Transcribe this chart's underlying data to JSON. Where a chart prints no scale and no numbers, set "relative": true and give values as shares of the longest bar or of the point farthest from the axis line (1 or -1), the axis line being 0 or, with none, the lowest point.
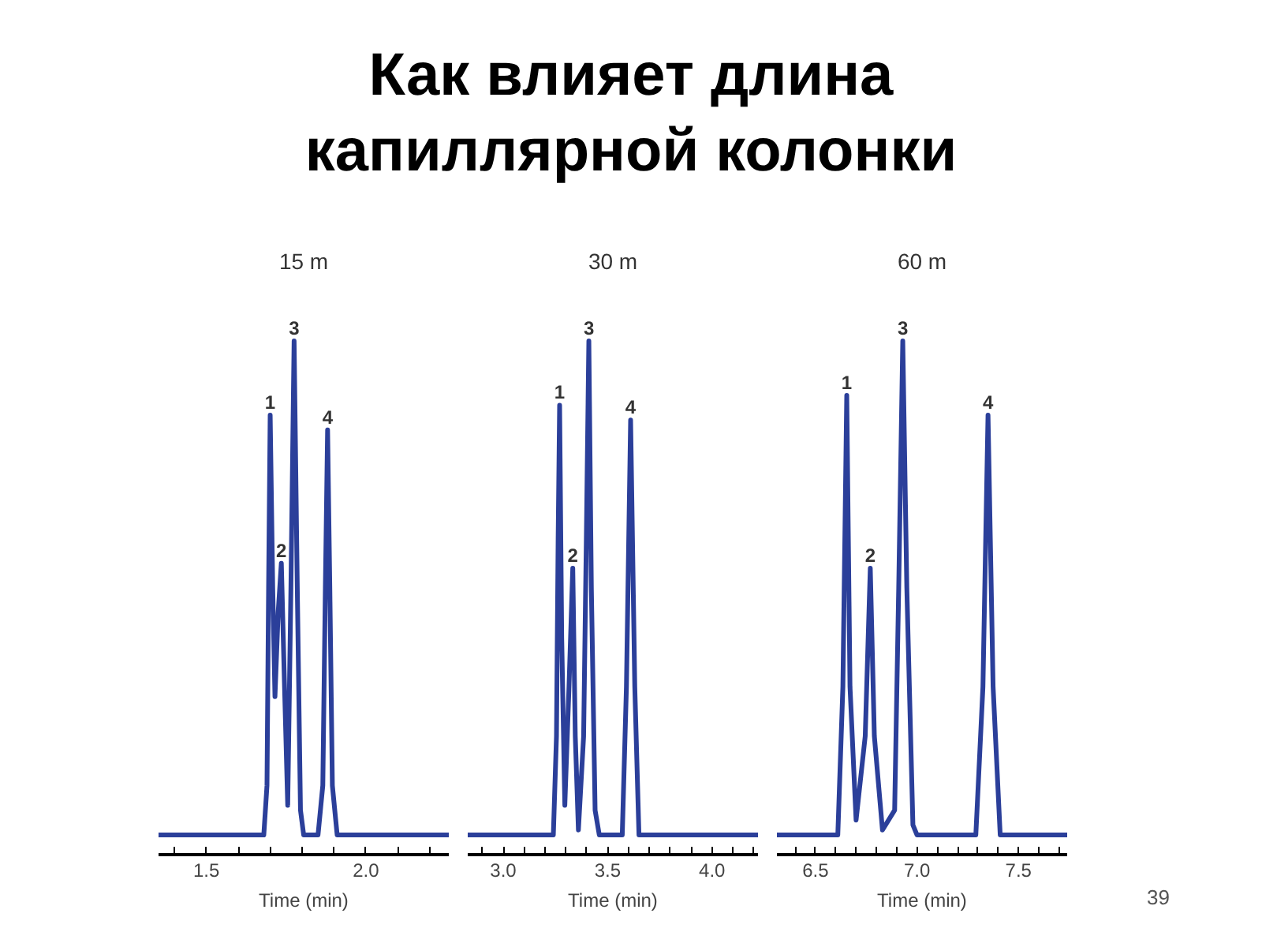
{
  "chart_data": [
    {
      "type": "line",
      "title": "Как влияет длина капиллярной колонки",
      "subtitle": "15 m",
      "xlabel": "Time (min)",
      "relative": true,
      "grid": false,
      "tick_labels": "x",
      "xlim": [
        1.35,
        2.26
      ],
      "xticks": [
        {
          "value": 1.4,
          "label": null
        },
        1.5,
        {
          "value": 1.6,
          "label": null
        },
        {
          "value": 1.7,
          "label": null
        },
        {
          "value": 1.8,
          "label": null
        },
        {
          "value": 1.9,
          "label": null
        },
        {
          "value": 2,
          "label": "2.0"
        },
        {
          "value": 2.1,
          "label": null
        },
        {
          "value": 2.2,
          "label": null
        }
      ],
      "series": [
        {
          "color": "#2b3f9a",
          "x": [
            1.35,
            1.68,
            1.69,
            1.695,
            1.7,
            1.708,
            1.715,
            1.725,
            1.735,
            1.745,
            1.755,
            1.765,
            1.775,
            1.785,
            1.795,
            1.805,
            1.85,
            1.865,
            1.873,
            1.88,
            1.887,
            1.895,
            1.91,
            2.26
          ],
          "values": [
            0,
            0,
            0.1,
            0.5,
            0.85,
            0.5,
            0.28,
            0.45,
            0.55,
            0.3,
            0.06,
            0.5,
            1.0,
            0.5,
            0.05,
            0,
            0,
            0.1,
            0.5,
            0.82,
            0.5,
            0.1,
            0,
            0
          ]
        }
      ],
      "annotations": [
        {
          "text": "1",
          "x": 1.7,
          "y": 0.85
        },
        {
          "text": "2",
          "x": 1.735,
          "y": 0.55
        },
        {
          "text": "3",
          "x": 1.775,
          "y": 1.0
        },
        {
          "text": "4",
          "x": 1.88,
          "y": 0.82
        }
      ]
    },
    {
      "type": "line",
      "subtitle": "30 m",
      "xlabel": "Time (min)",
      "relative": true,
      "grid": false,
      "tick_labels": "x",
      "xlim": [
        2.83,
        4.22
      ],
      "xticks": [
        {
          "value": 2.9,
          "label": null
        },
        {
          "value": 3,
          "label": "3.0"
        },
        {
          "value": 3.1,
          "label": null
        },
        {
          "value": 3.2,
          "label": null
        },
        {
          "value": 3.3,
          "label": null
        },
        {
          "value": 3.4,
          "label": null
        },
        3.5,
        {
          "value": 3.6,
          "label": null
        },
        {
          "value": 3.7,
          "label": null
        },
        {
          "value": 3.8,
          "label": null
        },
        {
          "value": 3.9,
          "label": null
        },
        {
          "value": 4,
          "label": "4.0"
        },
        {
          "value": 4.1,
          "label": null
        },
        {
          "value": 4.2,
          "label": null
        }
      ],
      "series": [
        {
          "color": "#2b3f9a",
          "x": [
            2.83,
            3.24,
            3.255,
            3.263,
            3.27,
            3.28,
            3.295,
            3.315,
            3.333,
            3.345,
            3.36,
            3.385,
            3.398,
            3.41,
            3.422,
            3.44,
            3.46,
            3.57,
            3.59,
            3.61,
            3.63,
            3.65,
            4.22
          ],
          "values": [
            0,
            0,
            0.2,
            0.6,
            0.87,
            0.4,
            0.06,
            0.3,
            0.54,
            0.2,
            0.01,
            0.2,
            0.6,
            1.0,
            0.5,
            0.05,
            0,
            0,
            0.3,
            0.84,
            0.3,
            0,
            0
          ]
        }
      ],
      "annotations": [
        {
          "text": "1",
          "x": 3.27,
          "y": 0.87
        },
        {
          "text": "2",
          "x": 3.333,
          "y": 0.54
        },
        {
          "text": "3",
          "x": 3.41,
          "y": 1.0
        },
        {
          "text": "4",
          "x": 3.61,
          "y": 0.84
        }
      ]
    },
    {
      "type": "line",
      "subtitle": "60 m",
      "xlabel": "Time (min)",
      "relative": true,
      "grid": false,
      "tick_labels": "x",
      "xlim": [
        6.31,
        7.74
      ],
      "xticks": [
        {
          "value": 6.4,
          "label": null
        },
        6.5,
        {
          "value": 6.6,
          "label": null
        },
        {
          "value": 6.7,
          "label": null
        },
        {
          "value": 6.8,
          "label": null
        },
        {
          "value": 6.9,
          "label": null
        },
        {
          "value": 7,
          "label": "7.0"
        },
        {
          "value": 7.1,
          "label": null
        },
        {
          "value": 7.2,
          "label": null
        },
        {
          "value": 7.3,
          "label": null
        },
        {
          "value": 7.4,
          "label": null
        },
        7.5,
        {
          "value": 7.6,
          "label": null
        },
        {
          "value": 7.7,
          "label": null
        }
      ],
      "series": [
        {
          "color": "#2b3f9a",
          "x": [
            6.31,
            6.61,
            6.635,
            6.654,
            6.67,
            6.7,
            6.745,
            6.77,
            6.79,
            6.83,
            6.89,
            6.91,
            6.93,
            6.95,
            6.98,
            7.0,
            7.29,
            7.325,
            7.35,
            7.375,
            7.41,
            7.74
          ],
          "values": [
            0,
            0,
            0.3,
            0.89,
            0.3,
            0.03,
            0.2,
            0.54,
            0.2,
            0.01,
            0.05,
            0.5,
            1.0,
            0.5,
            0.02,
            0,
            0,
            0.3,
            0.85,
            0.3,
            0,
            0
          ]
        }
      ],
      "annotations": [
        {
          "text": "1",
          "x": 6.654,
          "y": 0.89
        },
        {
          "text": "2",
          "x": 6.77,
          "y": 0.54
        },
        {
          "text": "3",
          "x": 6.93,
          "y": 1.0
        },
        {
          "text": "4",
          "x": 7.35,
          "y": 0.85
        },
        "39"
      ]
    }
  ]
}
